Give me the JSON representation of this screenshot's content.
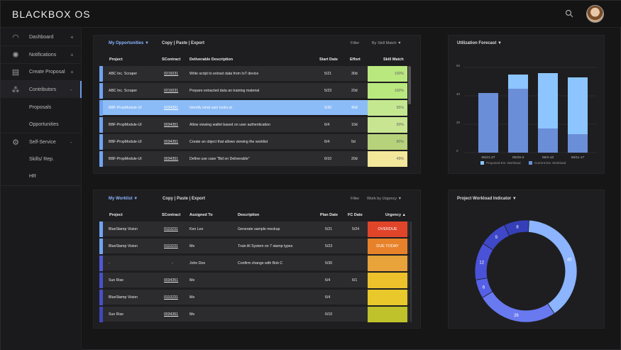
{
  "app": {
    "brand": "BLACKBOX",
    "brand_suffix": "OS"
  },
  "sidebar": {
    "items": [
      {
        "label": "Dashboard",
        "plus": "+"
      },
      {
        "label": "Notifications",
        "plus": "+"
      },
      {
        "label": "Create Proposal",
        "plus": "+"
      },
      {
        "label": "Contributors",
        "plus": "-"
      },
      {
        "label": "Self-Service",
        "plus": "-"
      }
    ],
    "sub_contributors": [
      "Proposals",
      "Opportunities"
    ],
    "sub_self": [
      "Skills/ Rep.",
      "HR"
    ]
  },
  "opps": {
    "title": "My Opportunities ▼",
    "actions": "Copy | Paste | Export",
    "filter": "Filter",
    "sort": "By Skill Match  ▼",
    "headers": [
      "Project",
      "SContract",
      "Deliverable Description",
      "Start Date",
      "Effort",
      "Skill Match"
    ],
    "rows": [
      {
        "project": "ABC Inc. Scraper",
        "contract": "0219231",
        "desc": "Write script to extract data from IoT device",
        "start": "5/21",
        "effort": "30d",
        "match": "100%"
      },
      {
        "project": "ABC Inc. Scraper",
        "contract": "0219231",
        "desc": "Prepare extracted data an training material",
        "start": "5/23",
        "effort": "20d",
        "match": "100%"
      },
      {
        "project": "BBF-PropModule-UI",
        "contract": "0034351",
        "desc": "Identify what user looks at",
        "start": "5/30",
        "effort": "40d",
        "match": "95%"
      },
      {
        "project": "BBF-PropModule-UI",
        "contract": "0034351",
        "desc": "Allow viewing wallet based on user authentication",
        "start": "6/4",
        "effort": "10d",
        "match": "90%"
      },
      {
        "project": "BBF-PropModule-UI",
        "contract": "0034351",
        "desc": "Create an object that allows viewing the worklist",
        "start": "6/4",
        "effort": "5d",
        "match": "80%"
      },
      {
        "project": "BBF-PropModule-UI",
        "contract": "0034351",
        "desc": "Define use case \"Bid on Deliverable\"",
        "start": "6/10",
        "effort": "20d",
        "match": "45%"
      }
    ],
    "match_colors": [
      "#b9e87f",
      "#b9e87f",
      "#c4e890",
      "#c8e592",
      "#b6d27a",
      "#f2e79a"
    ],
    "accent_colors": [
      "#6fa3ef",
      "#6fa3ef",
      "#6fa3ef",
      "#6fa3ef",
      "#6fa3ef",
      "#6fa3ef"
    ]
  },
  "work": {
    "title": "My Worklist ▼",
    "actions": "Copy | Paste | Export",
    "filter": "Filter",
    "sort": "Work by Urgency  ▼",
    "headers": [
      "Project",
      "SContract",
      "Assigned To",
      "Description",
      "Plan Date",
      "FC Date",
      "Urgency ▲"
    ],
    "rows": [
      {
        "project": "BlueStamp Vision",
        "contract": "0110231",
        "assigned": "Ken Lee",
        "desc": "Generate sample mockup",
        "plan": "5/21",
        "fc": "5/24",
        "urgency": "OVERDUE"
      },
      {
        "project": "BlueStamp Vision",
        "contract": "0110231",
        "assigned": "Me",
        "desc": "Train AI System on 7 stamp types",
        "plan": "5/23",
        "fc": "",
        "urgency": "DUE TODAY"
      },
      {
        "project": "-",
        "contract": "-",
        "assigned": "John Doe",
        "desc": "Confirm change with  Bob C",
        "plan": "5/30",
        "fc": "",
        "urgency": ""
      },
      {
        "project": "Sun Rise",
        "contract": "0034351",
        "assigned": "Me",
        "desc": "",
        "plan": "6/4",
        "fc": "6/1",
        "urgency": ""
      },
      {
        "project": "BlueStamp Vision",
        "contract": "0110231",
        "assigned": "Me",
        "desc": "",
        "plan": "6/4",
        "fc": "",
        "urgency": ""
      },
      {
        "project": "Sun Rise",
        "contract": "0034351",
        "assigned": "Me",
        "desc": "",
        "plan": "6/10",
        "fc": "",
        "urgency": ""
      }
    ],
    "urgency_colors": [
      "#e0452a",
      "#e8822a",
      "#e8a33a",
      "#ecc12c",
      "#e8c82a",
      "#bfc22a"
    ],
    "accent_colors": [
      "#6fa3ef",
      "#6fa3ef",
      "#5257d6",
      "#4750c8",
      "#4750c8",
      "#3f47b8"
    ]
  },
  "util": {
    "title": "Utilization Forecast  ▼",
    "chart_data": {
      "type": "bar",
      "categories": [
        "05/21-27",
        "05/28-3",
        "06/4-10",
        "06/11-17"
      ],
      "series": [
        {
          "name": "Proposed Est. Workload",
          "values": [
            0,
            10,
            39,
            40
          ]
        },
        {
          "name": "Current Est. Workload",
          "values": [
            42,
            45,
            17,
            13
          ]
        }
      ],
      "ylim": [
        0,
        60
      ],
      "yticks": [
        "60",
        "40",
        "20",
        "0"
      ]
    },
    "colors": {
      "proposed": "#8cc5ff",
      "current": "#6b8ed8"
    }
  },
  "workload": {
    "title": "Project Workload Indicator ▼",
    "chart_data": {
      "type": "pie",
      "values": [
        40,
        26,
        6,
        12,
        9,
        8
      ]
    },
    "colors": [
      "#8cb4ff",
      "#6979f0",
      "#5560e8",
      "#4a52d8",
      "#3f48c8",
      "#3540b8"
    ]
  }
}
